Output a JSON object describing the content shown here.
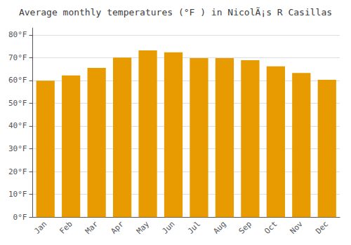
{
  "chart_data": {
    "type": "bar",
    "title": "Average monthly temperatures (°F ) in NicolÃ¡s R Casillas",
    "categories": [
      "Jan",
      "Feb",
      "Mar",
      "Apr",
      "May",
      "Jun",
      "Jul",
      "Aug",
      "Sep",
      "Oct",
      "Nov",
      "Dec"
    ],
    "values": [
      59.9,
      62.2,
      65.5,
      70.0,
      73.2,
      72.3,
      69.8,
      69.8,
      68.9,
      66.2,
      63.3,
      60.3
    ],
    "color": "#E89B00",
    "ylim": [
      0,
      83
    ],
    "yticks": [
      {
        "value": 0,
        "label": "0°F"
      },
      {
        "value": 10,
        "label": "10°F"
      },
      {
        "value": 20,
        "label": "20°F"
      },
      {
        "value": 30,
        "label": "30°F"
      },
      {
        "value": 40,
        "label": "40°F"
      },
      {
        "value": 50,
        "label": "50°F"
      },
      {
        "value": 60,
        "label": "60°F"
      },
      {
        "value": 70,
        "label": "70°F"
      },
      {
        "value": 80,
        "label": "80°F"
      }
    ],
    "grid": true
  }
}
